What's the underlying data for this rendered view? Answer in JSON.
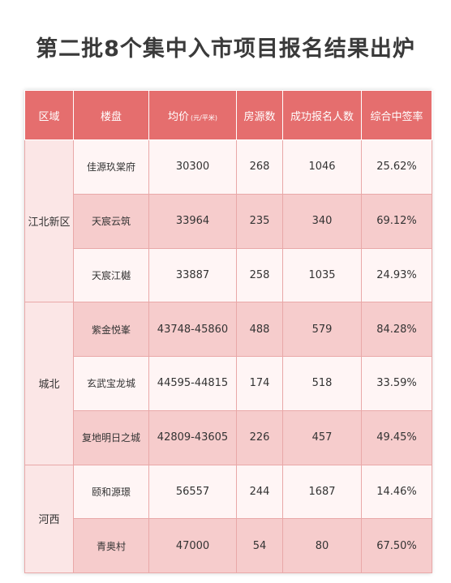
{
  "title": "第二批8个集中入市项目报名结果出炉",
  "headers": {
    "district": "区域",
    "project": "楼盘",
    "price": "均价",
    "price_unit": "(元/平米)",
    "units": "房源数",
    "registrations": "成功报名人数",
    "rate": "综合中签率"
  },
  "districts": [
    {
      "name": "江北新区"
    },
    {
      "name": "城北"
    },
    {
      "name": "河西"
    }
  ],
  "rows": [
    {
      "project": "佳源玖棠府",
      "price": "30300",
      "units": "268",
      "registrations": "1046",
      "rate": "25.62%"
    },
    {
      "project": "天宸云筑",
      "price": "33964",
      "units": "235",
      "registrations": "340",
      "rate": "69.12%"
    },
    {
      "project": "天宸江樾",
      "price": "33887",
      "units": "258",
      "registrations": "1035",
      "rate": "24.93%"
    },
    {
      "project": "紫金悦峯",
      "price": "43748-45860",
      "units": "488",
      "registrations": "579",
      "rate": "84.28%"
    },
    {
      "project": "玄武宝龙城",
      "price": "44595-44815",
      "units": "174",
      "registrations": "518",
      "rate": "33.59%"
    },
    {
      "project": "复地明日之城",
      "price": "42809-43605",
      "units": "226",
      "registrations": "457",
      "rate": "49.45%"
    },
    {
      "project": "颐和源璟",
      "price": "56557",
      "units": "244",
      "registrations": "1687",
      "rate": "14.46%"
    },
    {
      "project": "青奥村",
      "price": "47000",
      "units": "54",
      "registrations": "80",
      "rate": "67.50%"
    }
  ]
}
